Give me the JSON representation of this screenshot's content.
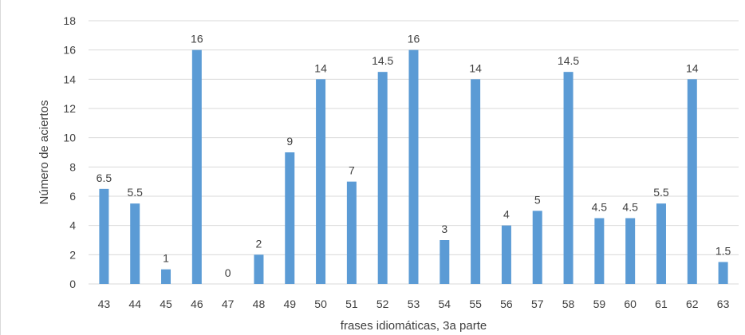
{
  "chart_data": {
    "type": "bar",
    "title": "",
    "xlabel": "frases idiomáticas, 3a parte",
    "ylabel": "Número de aciertos",
    "categories": [
      "43",
      "44",
      "45",
      "46",
      "47",
      "48",
      "49",
      "50",
      "51",
      "52",
      "53",
      "54",
      "55",
      "56",
      "57",
      "58",
      "59",
      "60",
      "61",
      "62",
      "63"
    ],
    "values": [
      6.5,
      5.5,
      1,
      16,
      0,
      2,
      9,
      14,
      7,
      14.5,
      16,
      3,
      14,
      4,
      5,
      14.5,
      4.5,
      4.5,
      5.5,
      14,
      1.5
    ],
    "data_labels": [
      "6.5",
      "5.5",
      "1",
      "16",
      "0",
      "2",
      "9",
      "14",
      "7",
      "14.5",
      "16",
      "3",
      "14",
      "4",
      "5",
      "14.5",
      "4.5",
      "4.5",
      "5.5",
      "14",
      "1.5"
    ],
    "ylim": [
      0,
      18
    ],
    "yticks": [
      0,
      2,
      4,
      6,
      8,
      10,
      12,
      14,
      16,
      18
    ],
    "grid": true,
    "legend": "none",
    "colors": {
      "bar": "#5b9bd5",
      "grid": "#d9d9d9",
      "text": "#404040"
    }
  }
}
